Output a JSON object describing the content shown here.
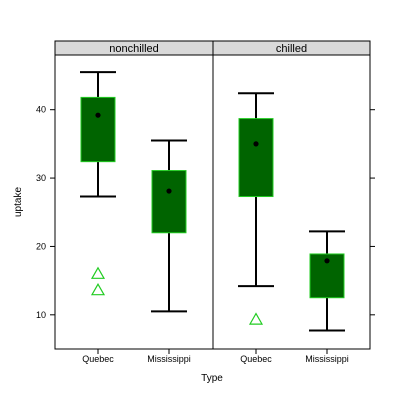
{
  "chart_data": {
    "type": "box",
    "xlabel": "Type",
    "ylabel": "uptake",
    "ylim": [
      5,
      48
    ],
    "y_ticks": [
      10,
      20,
      30,
      40
    ],
    "categories": [
      "Quebec",
      "Mississippi"
    ],
    "colors": {
      "box_fill": "#006400",
      "box_border": "#22cc22",
      "outlier": "#22cc22",
      "strip_bg": "#d9d9d9",
      "line": "#000000"
    },
    "panels": [
      {
        "strip": "nonchilled",
        "boxes": [
          {
            "category": "Quebec",
            "whisker_low": 27.3,
            "q1": 32.4,
            "median": 39.2,
            "q3": 41.8,
            "whisker_high": 45.5,
            "outliers": [
              16.0,
              13.6
            ]
          },
          {
            "category": "Mississippi",
            "whisker_low": 10.5,
            "q1": 22.0,
            "median": 28.1,
            "q3": 31.1,
            "whisker_high": 35.5,
            "outliers": []
          }
        ]
      },
      {
        "strip": "chilled",
        "boxes": [
          {
            "category": "Quebec",
            "whisker_low": 14.2,
            "q1": 27.3,
            "median": 35.0,
            "q3": 38.7,
            "whisker_high": 42.4,
            "outliers": [
              9.3
            ]
          },
          {
            "category": "Mississippi",
            "whisker_low": 7.7,
            "q1": 12.5,
            "median": 17.9,
            "q3": 18.9,
            "whisker_high": 22.2,
            "outliers": []
          }
        ]
      }
    ]
  }
}
